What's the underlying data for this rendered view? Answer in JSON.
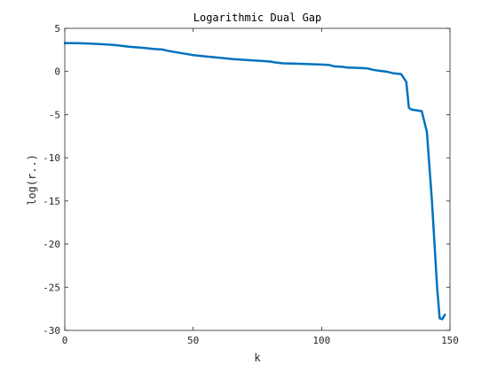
{
  "chart_data": {
    "type": "line",
    "title": "Logarithmic Dual Gap",
    "xlabel": "k",
    "ylabel": "log(r..)",
    "xlim": [
      0,
      150
    ],
    "ylim": [
      -30,
      5
    ],
    "xticks": [
      0,
      50,
      100,
      150
    ],
    "yticks": [
      5,
      0,
      -5,
      -10,
      -15,
      -20,
      -25,
      -30
    ],
    "grid": false,
    "line_color": "#0072BD",
    "series": [
      {
        "x": [
          0,
          5,
          10,
          15,
          20,
          25,
          30,
          35,
          38,
          40,
          45,
          50,
          55,
          60,
          65,
          70,
          75,
          80,
          82,
          85,
          90,
          95,
          100,
          103,
          105,
          108,
          110,
          115,
          118,
          120,
          122,
          125,
          128,
          131,
          133,
          134,
          135,
          137,
          139,
          141,
          143,
          145,
          146,
          147,
          148
        ],
        "y": [
          3.3,
          3.28,
          3.22,
          3.15,
          3.05,
          2.88,
          2.75,
          2.6,
          2.55,
          2.4,
          2.15,
          1.9,
          1.75,
          1.6,
          1.45,
          1.35,
          1.25,
          1.15,
          1.05,
          0.95,
          0.9,
          0.85,
          0.8,
          0.75,
          0.6,
          0.55,
          0.45,
          0.4,
          0.35,
          0.2,
          0.1,
          0.0,
          -0.2,
          -0.3,
          -1.2,
          -4.2,
          -4.4,
          -4.5,
          -4.6,
          -7.0,
          -15.0,
          -25.0,
          -28.6,
          -28.7,
          -28.2
        ]
      }
    ]
  }
}
